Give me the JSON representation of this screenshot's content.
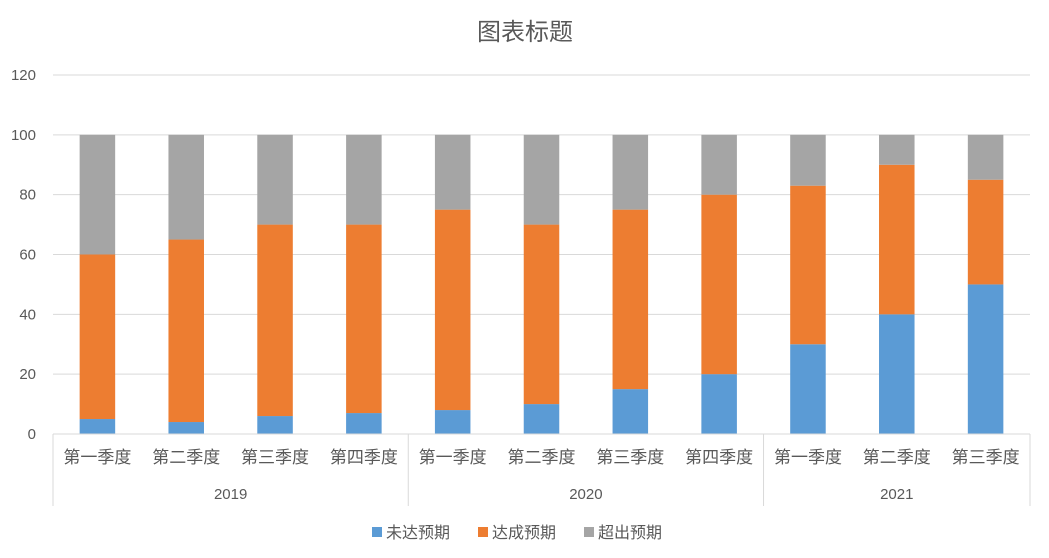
{
  "chart_data": {
    "type": "bar",
    "stacked": true,
    "title": "图表标题",
    "groups": [
      {
        "label": "2019",
        "categories": [
          "第一季度",
          "第二季度",
          "第三季度",
          "第四季度"
        ]
      },
      {
        "label": "2020",
        "categories": [
          "第一季度",
          "第二季度",
          "第三季度",
          "第四季度"
        ]
      },
      {
        "label": "2021",
        "categories": [
          "第一季度",
          "第二季度",
          "第三季度"
        ]
      }
    ],
    "series": [
      {
        "name": "未达预期",
        "color": "#5B9BD5",
        "values": [
          5,
          4,
          6,
          7,
          8,
          10,
          15,
          20,
          30,
          40,
          50
        ]
      },
      {
        "name": "达成预期",
        "color": "#ED7D31",
        "values": [
          55,
          61,
          64,
          63,
          67,
          60,
          60,
          60,
          53,
          50,
          35
        ]
      },
      {
        "name": "超出预期",
        "color": "#A5A5A5",
        "values": [
          40,
          35,
          30,
          30,
          25,
          30,
          25,
          20,
          17,
          10,
          15
        ]
      }
    ],
    "ylim": [
      0,
      120
    ],
    "yticks": [
      0,
      20,
      40,
      60,
      80,
      100,
      120
    ],
    "grid": true,
    "legend": "bottom"
  }
}
